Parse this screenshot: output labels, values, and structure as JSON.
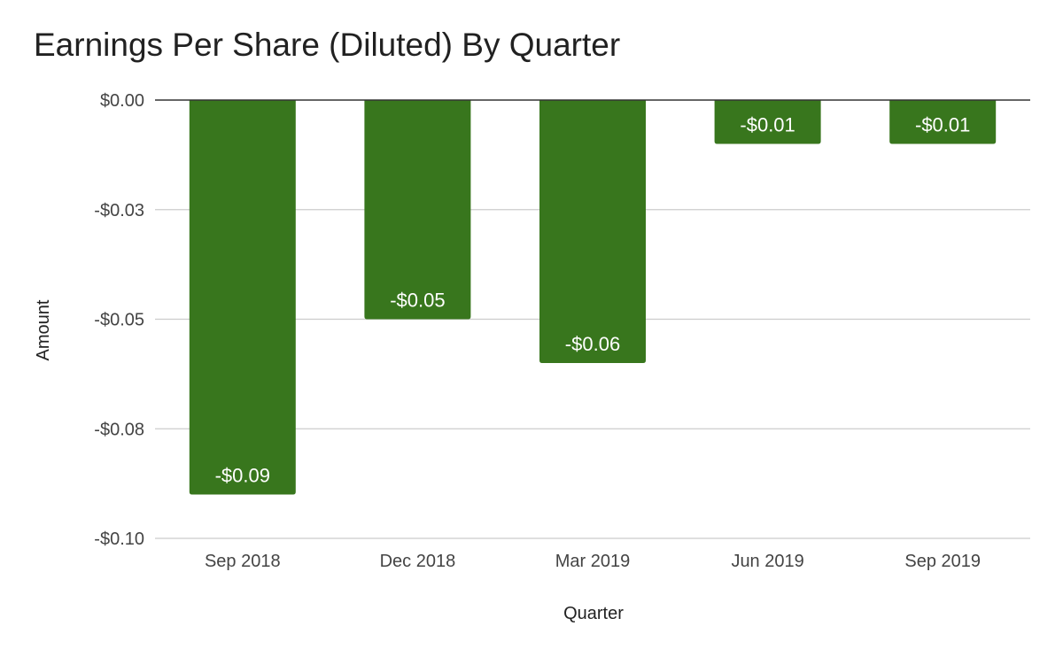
{
  "chart_data": {
    "type": "bar",
    "title": "Earnings Per Share (Diluted) By Quarter",
    "xlabel": "Quarter",
    "ylabel": "Amount",
    "categories": [
      "Sep 2018",
      "Dec 2018",
      "Mar 2019",
      "Jun 2019",
      "Sep 2019"
    ],
    "values": [
      -0.09,
      -0.05,
      -0.06,
      -0.01,
      -0.01
    ],
    "data_labels": [
      "-$0.09",
      "-$0.05",
      "-$0.06",
      "-$0.01",
      "-$0.01"
    ],
    "ylim": [
      -0.1,
      0.0
    ],
    "yticks": [
      0.0,
      -0.025,
      -0.05,
      -0.075,
      -0.1
    ],
    "ytick_labels": [
      "$0.00",
      "-$0.03",
      "-$0.05",
      "-$0.08",
      "-$0.10"
    ],
    "grid": true,
    "legend": "none",
    "colors": {
      "bar": "#38761d"
    }
  }
}
